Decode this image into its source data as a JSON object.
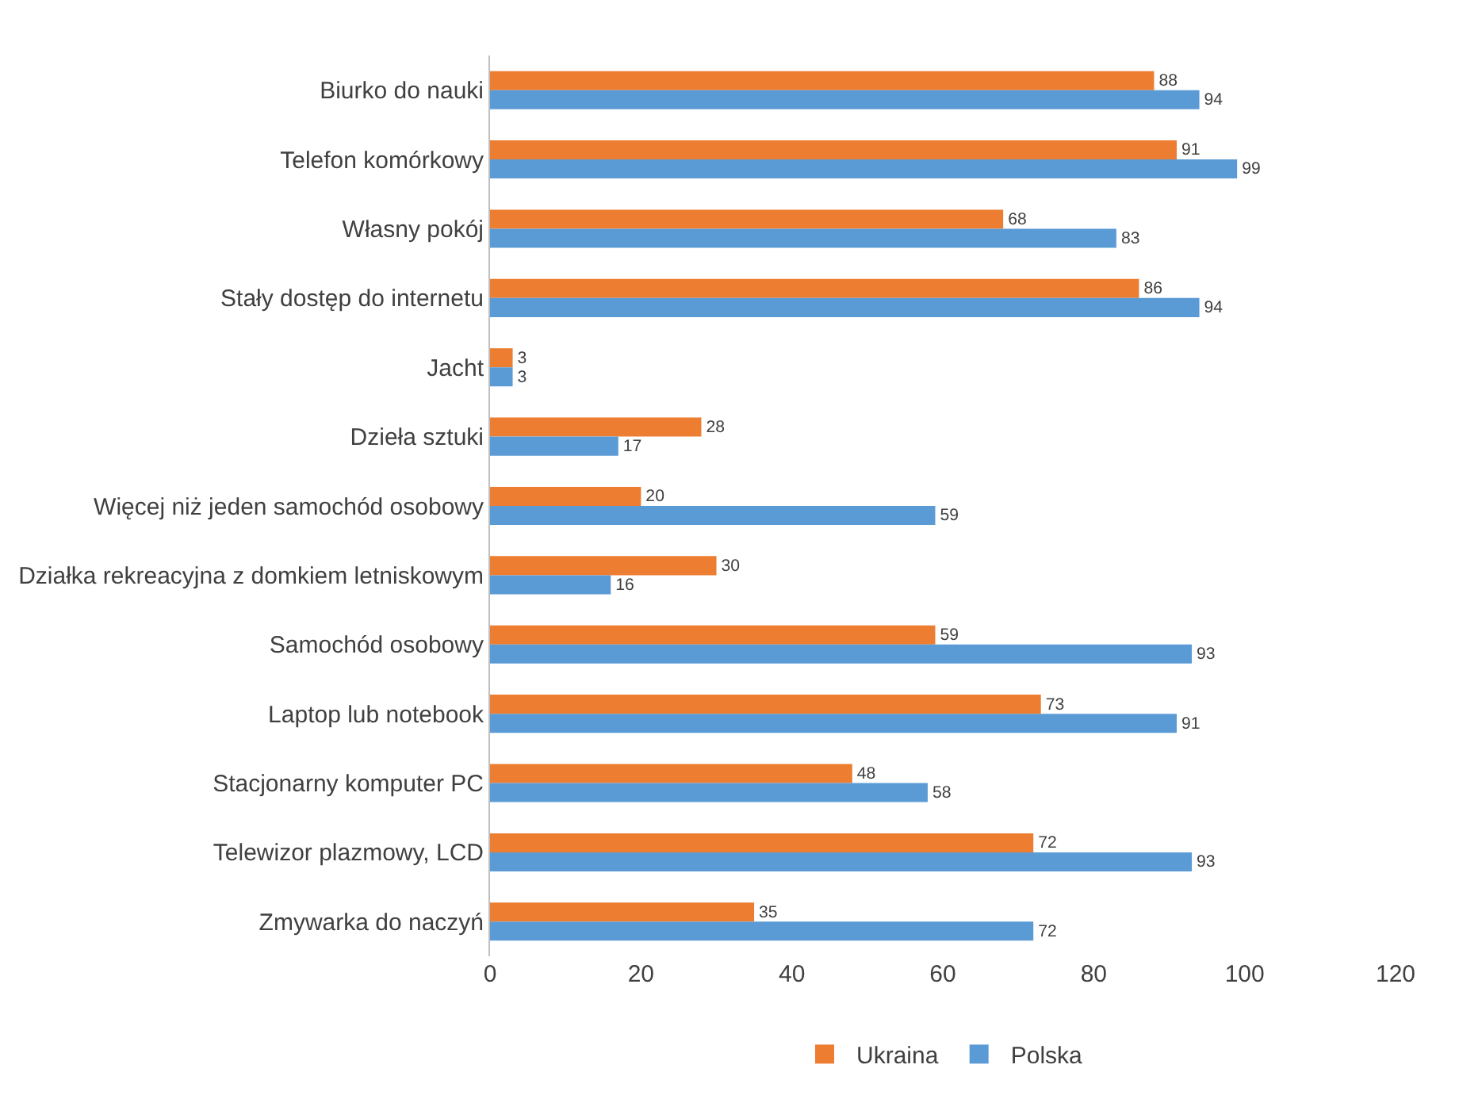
{
  "chart_data": {
    "type": "bar",
    "orientation": "horizontal",
    "categories": [
      "Biurko do nauki",
      "Telefon komórkowy",
      "Własny pokój",
      "Stały dostęp do internetu",
      "Jacht",
      "Dzieła sztuki",
      "Więcej niż jeden samochód osobowy",
      "Działka rekreacyjna z domkiem letniskowym",
      "Samochód osobowy",
      "Laptop lub notebook",
      "Stacjonarny komputer PC",
      "Telewizor plazmowy, LCD",
      "Zmywarka do naczyń"
    ],
    "series": [
      {
        "name": "Ukraina",
        "color": "#ed7d31",
        "values": [
          88,
          91,
          68,
          86,
          3,
          28,
          20,
          30,
          59,
          73,
          48,
          72,
          35
        ]
      },
      {
        "name": "Polska",
        "color": "#5b9bd5",
        "values": [
          94,
          99,
          83,
          94,
          3,
          17,
          59,
          16,
          93,
          91,
          58,
          93,
          72
        ]
      }
    ],
    "xlim": [
      0,
      120
    ],
    "xticks": [
      0,
      20,
      40,
      60,
      80,
      100,
      120
    ],
    "data_labels": true,
    "grid": false,
    "legend": "bottom"
  }
}
